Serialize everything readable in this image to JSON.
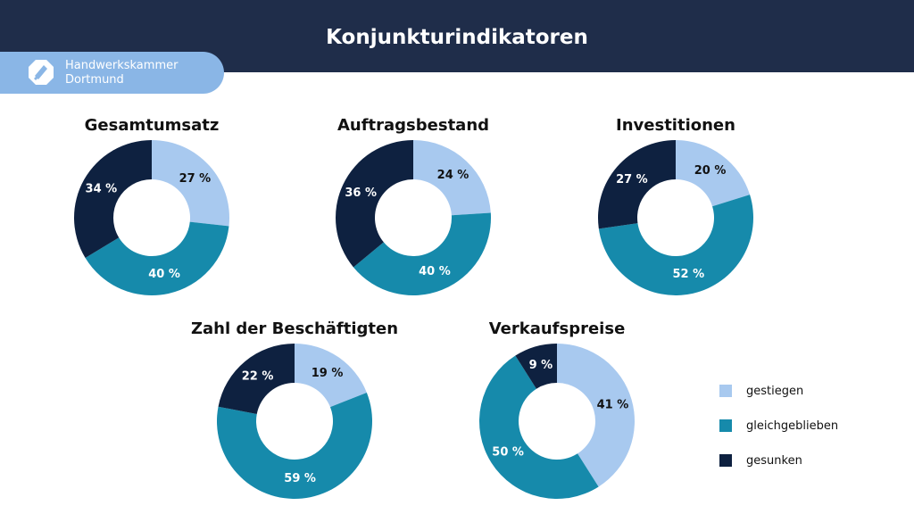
{
  "header": {
    "title": "Konjunkturindikatoren"
  },
  "brand": {
    "line1": "Handwerkskammer",
    "line2": "Dortmund"
  },
  "colors": {
    "header_bg": "#1f2d4a",
    "gestiegen": "#a8c9ef",
    "gleichgeblieben": "#168aab",
    "gesunken": "#0e2140"
  },
  "legend": [
    {
      "label": "gestiegen",
      "color": "#a8c9ef"
    },
    {
      "label": "gleichgeblieben",
      "color": "#168aab"
    },
    {
      "label": "gesunken",
      "color": "#0e2140"
    }
  ],
  "chart_data": [
    {
      "type": "pie",
      "title": "Gesamtumsatz",
      "categories": [
        "gestiegen",
        "gleichgeblieben",
        "gesunken"
      ],
      "values": [
        27,
        40,
        34
      ],
      "labels": [
        "27 %",
        "40 %",
        "34 %"
      ]
    },
    {
      "type": "pie",
      "title": "Auftragsbestand",
      "categories": [
        "gestiegen",
        "gleichgeblieben",
        "gesunken"
      ],
      "values": [
        24,
        40,
        36
      ],
      "labels": [
        "24 %",
        "40 %",
        "36 %"
      ]
    },
    {
      "type": "pie",
      "title": "Investitionen",
      "categories": [
        "gestiegen",
        "gleichgeblieben",
        "gesunken"
      ],
      "values": [
        20,
        52,
        27
      ],
      "labels": [
        "20 %",
        "52 %",
        "27 %"
      ]
    },
    {
      "type": "pie",
      "title": "Zahl der Beschäftigten",
      "categories": [
        "gestiegen",
        "gleichgeblieben",
        "gesunken"
      ],
      "values": [
        19,
        59,
        22
      ],
      "labels": [
        "19 %",
        "59 %",
        "22 %"
      ]
    },
    {
      "type": "pie",
      "title": "Verkaufspreise",
      "categories": [
        "gestiegen",
        "gleichgeblieben",
        "gesunken"
      ],
      "values": [
        41,
        50,
        9
      ],
      "labels": [
        "41 %",
        "50 %",
        "9 %"
      ]
    }
  ]
}
